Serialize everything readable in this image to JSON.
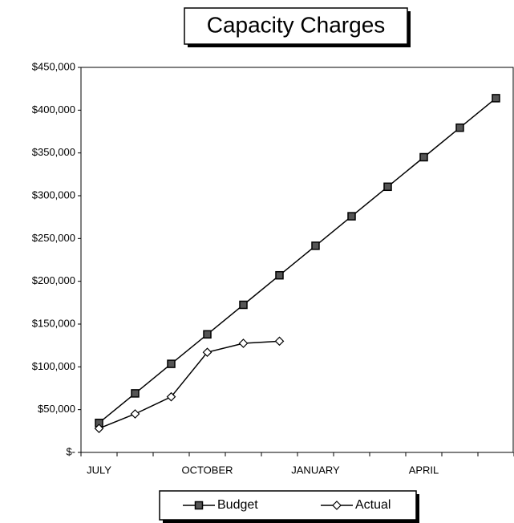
{
  "chart_data": {
    "type": "line",
    "title": "Capacity Charges",
    "categories": [
      "JULY",
      null,
      null,
      "OCTOBER",
      null,
      null,
      "JANUARY",
      null,
      null,
      "APRIL",
      null,
      null
    ],
    "series": [
      {
        "name": "Budget",
        "color": "#000000",
        "marker": "square",
        "values": [
          34500,
          69000,
          103500,
          138000,
          172500,
          207000,
          241500,
          276000,
          310500,
          345000,
          379500,
          414000
        ]
      },
      {
        "name": "Actual",
        "color": "#000000",
        "marker": "diamond",
        "values": [
          28000,
          45000,
          65000,
          117000,
          127500,
          130000,
          null,
          null,
          null,
          null,
          null,
          null
        ]
      }
    ],
    "ylim": [
      0,
      450000
    ],
    "yticks": [
      {
        "value": 0,
        "label": "$-"
      },
      {
        "value": 50000,
        "label": "$50,000"
      },
      {
        "value": 100000,
        "label": "$100,000"
      },
      {
        "value": 150000,
        "label": "$150,000"
      },
      {
        "value": 200000,
        "label": "$200,000"
      },
      {
        "value": 250000,
        "label": "$250,000"
      },
      {
        "value": 300000,
        "label": "$300,000"
      },
      {
        "value": 350000,
        "label": "$350,000"
      },
      {
        "value": 400000,
        "label": "$400,000"
      },
      {
        "value": 450000,
        "label": "$450,000"
      }
    ],
    "grid": false,
    "legend": "bottom"
  }
}
